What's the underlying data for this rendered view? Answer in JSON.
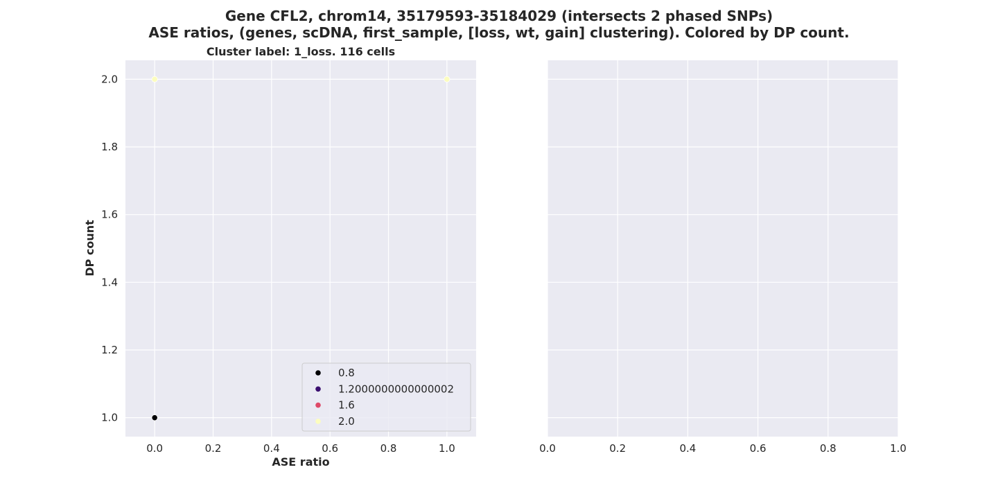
{
  "figure": {
    "title_line1": "Gene CFL2, chrom14, 35179593-35184029 (intersects 2 phased SNPs)",
    "title_line2": "ASE ratios, (genes, scDNA, first_sample, [loss, wt, gain] clustering). Colored by DP count."
  },
  "chart_data": [
    {
      "type": "scatter",
      "title": "Cluster label: 1_loss. 116 cells",
      "xlabel": "ASE ratio",
      "ylabel": "DP count",
      "xlim": [
        -0.1,
        1.1
      ],
      "ylim": [
        0.944,
        2.056
      ],
      "xticks": [
        "0.0",
        "0.2",
        "0.4",
        "0.6",
        "0.8",
        "1.0"
      ],
      "xtick_values": [
        0.0,
        0.2,
        0.4,
        0.6,
        0.8,
        1.0
      ],
      "yticks": [
        "1.0",
        "1.2",
        "1.4",
        "1.6",
        "1.8",
        "2.0"
      ],
      "ytick_values": [
        1.0,
        1.2,
        1.4,
        1.6,
        1.8,
        2.0
      ],
      "grid": true,
      "background": "#eaeaf2",
      "points": [
        {
          "x": 0.0,
          "y": 1.0,
          "dp": 1.0,
          "color": "#000004"
        },
        {
          "x": 0.0,
          "y": 2.0,
          "dp": 2.0,
          "color": "#fcfdbf"
        },
        {
          "x": 1.0,
          "y": 2.0,
          "dp": 2.0,
          "color": "#fcfdbf"
        }
      ],
      "legend": {
        "placement": "lower-right",
        "entries": [
          {
            "label": "0.8",
            "color": "#000004"
          },
          {
            "label": "1.2000000000000002",
            "color": "#3b0f70"
          },
          {
            "label": "1.6",
            "color": "#de4968"
          },
          {
            "label": "2.0",
            "color": "#fcfdbf"
          }
        ]
      }
    },
    {
      "type": "scatter",
      "title": "",
      "xlabel": "",
      "ylabel": "",
      "xlim": [
        0.0,
        1.0
      ],
      "ylim": [
        0.944,
        2.056
      ],
      "xticks": [
        "0.0",
        "0.2",
        "0.4",
        "0.6",
        "0.8",
        "1.0"
      ],
      "xtick_values": [
        0.0,
        0.2,
        0.4,
        0.6,
        0.8,
        1.0
      ],
      "yticks": [],
      "ytick_values": [
        1.0,
        1.2,
        1.4,
        1.6,
        1.8,
        2.0
      ],
      "grid": true,
      "background": "#eaeaf2",
      "points": []
    }
  ]
}
